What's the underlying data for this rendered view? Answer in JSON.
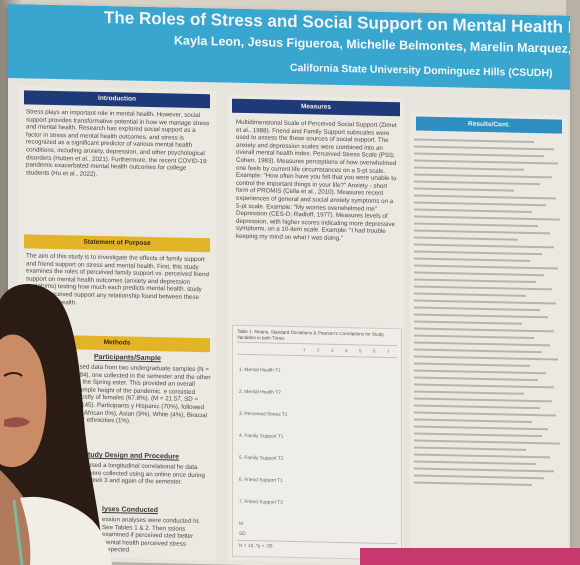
{
  "poster": {
    "title": "The Roles of Stress and Social Support on Mental Health During",
    "authors": "Kayla Leon, Jesus Figueroa, Michelle Belmontes, Marelin Marquez, Giacon",
    "affiliation": "California State University Dominguez Hills (CSUDH)"
  },
  "sections": {
    "introduction": {
      "heading": "Introduction",
      "body": "Stress plays an important role in mental health. However, social support provides transformative potential in how we manage stress and mental health. Research has explored social support as a factor in stress and mental health outcomes, and stress is recognized as a significant predictor of various mental health conditions, including anxiety, depression, and other psychological disorders (Hutten et al., 2021). Furthermore, the recent COVID-19 pandemic exacerbated mental health outcomes for college students (Hu et al., 2022)."
    },
    "purpose": {
      "heading": "Statement of Purpose",
      "body": "The aim of this study is to investigate the effects of family support and friend support on stress and mental health. First, this study examines the roles of perceived family support vs. perceived friend support on mental health outcomes (anxiety and depression symptoms) testing how much each predicts mental health. study tests if perceived support any relationship found between these and mental health."
    },
    "methods": {
      "heading": "Methods",
      "participants_heading": "Participants/Sample",
      "participants_body": "used data from two undergraduate samples (N = 284), one collected in the semester and the other in the Spring ester. This provided an overall sample height of the pandemic. e consisted mostly of females (67.8%), (M = 21.57, SD = 6.145). Participants y Hispanic (70%), followed by African 0%), Asian (9%), White (4%), Biracial her ethnicities (1%).",
      "design_heading": "tudy Design and Procedure",
      "design_body": "used a longitudinal correlational he data were collected using an online once during week 3 and again of the semester.",
      "analyses_heading": "lyses Conducted",
      "analyses_body": "ession analyses were conducted ht. See Tables 1 & 2. Then ssions examined if perceived cted better mental health perceived stress (expected"
    },
    "measures": {
      "heading": "Measures",
      "body": "Multidimensional Scale of Perceived Social Support (Zimet et al., 1988). Friend and Family Support subscales were used to assess the these sources of social support. The anxiety and depression scales were combined into an overall mental health index. Perceived Stress Scale (PSS; Cohen, 1983). Measures perceptions of how overwhelmed one feels by current life circumstances on a 5-pt scale. Example: \"How often have you felt that you were unable to control the important things in your life?\" Anxiety - short form of PROMIS (Cella et al., 2010). Measures recent experiences of general and social anxiety symptoms on a 5-pt scale. Example: \"My worries overwhelmed me\" Depression (CES-D; Radloff, 1977). Measures levels of depression, with higher scores indicating more depressive symptoms, on a 10-item scale. Example: \"I had trouble keeping my mind on what I was doing.\""
    },
    "table": {
      "caption": "Table 1. Means, Standard Deviations & Pearson's Correlations for Study Variables in both Times",
      "columns": [
        "1",
        "2",
        "3",
        "4",
        "5",
        "6",
        "7"
      ],
      "rows": [
        "1. Mental Health T1",
        "2. Mental Health T2",
        "3. Perceived Stress T1",
        "4. Family Support T1",
        "5. Family Support T2",
        "6. Friend Support T1",
        "7. Friend Support T2",
        "M",
        "SD"
      ],
      "footnote": "N = 10, *p < .05"
    },
    "results": {
      "heading": "Results/Cont."
    }
  }
}
